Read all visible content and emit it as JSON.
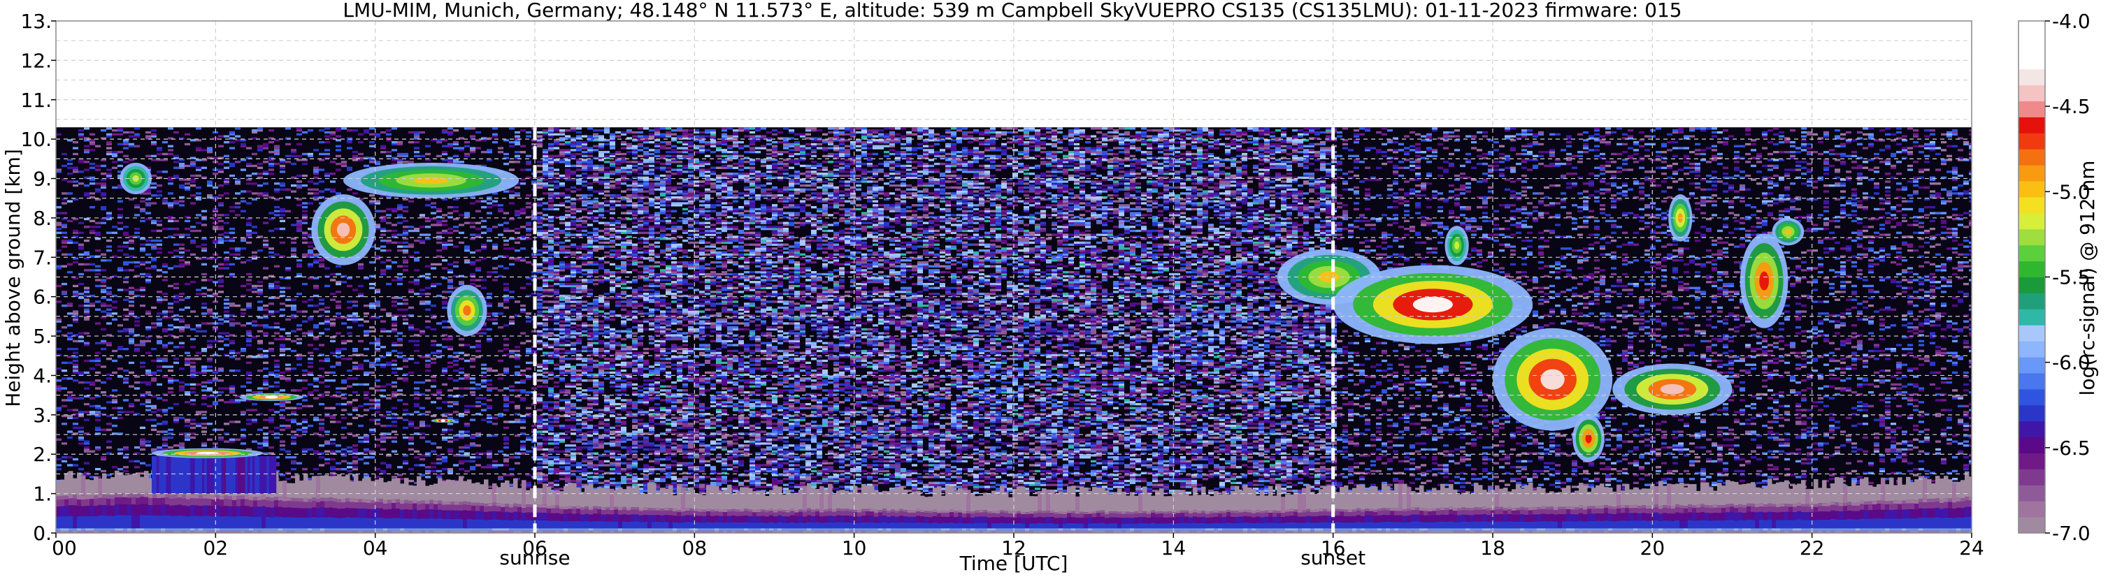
{
  "chart_data": {
    "type": "heatmap",
    "title": "LMU-MIM, Munich, Germany; 48.148° N 11.573° E, altitude: 539 m    Campbell SkyVUEPRO CS135 (CS135LMU): 01-11-2023    firmware: 015",
    "xlabel": "Time [UTC]",
    "ylabel": "Height above ground [km]",
    "xlim": [
      0,
      24
    ],
    "ylim": [
      0,
      13
    ],
    "x_ticks": [
      "00",
      "02",
      "04",
      "06",
      "08",
      "10",
      "12",
      "14",
      "16",
      "18",
      "20",
      "22",
      "24"
    ],
    "y_ticks": [
      "0.",
      "1.",
      "2.",
      "3.",
      "4.",
      "5.",
      "6.",
      "7.",
      "8.",
      "9.",
      "10.",
      "11.",
      "12.",
      "13."
    ],
    "grid": true,
    "data_top_km": 10.3,
    "colorbar": {
      "label": "log(rc-signal) @ 912 nm",
      "range": [
        -7.0,
        -4.0
      ],
      "ticks": [
        "-7.0",
        "-6.5",
        "-6.0",
        "-5.5",
        "-5.0",
        "-4.5",
        "-4.0"
      ],
      "colors": [
        "#a08aa0",
        "#9f749f",
        "#8f5a98",
        "#7f3a8f",
        "#6f1a86",
        "#5a0a88",
        "#3f16a8",
        "#2b36c8",
        "#2f55e0",
        "#4a76f0",
        "#6a98f8",
        "#8db6fc",
        "#a8c8fc",
        "#2db8a8",
        "#1fa07a",
        "#1a9a3a",
        "#2fb82f",
        "#5ccf3c",
        "#9ede3e",
        "#d7ee3a",
        "#f4e020",
        "#fbbf14",
        "#f99a10",
        "#f47010",
        "#f03a10",
        "#e6110c",
        "#f08a8a",
        "#f5c3c3",
        "#f5e6e6",
        "#ffffff",
        "#ffffff",
        "#ffffff"
      ]
    },
    "markers": [
      {
        "time": 6.0,
        "label": "sunrise"
      },
      {
        "time": 16.0,
        "label": "sunset"
      }
    ],
    "boundary_layer": [
      {
        "t": 0,
        "top": 0.95
      },
      {
        "t": 1,
        "top": 1.0
      },
      {
        "t": 2,
        "top": 0.95
      },
      {
        "t": 3,
        "top": 0.9
      },
      {
        "t": 4,
        "top": 0.85
      },
      {
        "t": 5,
        "top": 0.8
      },
      {
        "t": 6,
        "top": 0.7
      },
      {
        "t": 8,
        "top": 0.6
      },
      {
        "t": 10,
        "top": 0.6
      },
      {
        "t": 12,
        "top": 0.55
      },
      {
        "t": 14,
        "top": 0.55
      },
      {
        "t": 16,
        "top": 0.6
      },
      {
        "t": 18,
        "top": 0.65
      },
      {
        "t": 20,
        "top": 0.7
      },
      {
        "t": 22,
        "top": 0.75
      },
      {
        "t": 24,
        "top": 0.9
      }
    ],
    "cloud_layers": [
      {
        "t0": 1.2,
        "t1": 2.6,
        "z0": 1.9,
        "z1": 2.15,
        "max": -4.0
      },
      {
        "t0": 2.3,
        "t1": 3.1,
        "z0": 3.35,
        "z1": 3.55,
        "max": -4.0
      },
      {
        "t0": 4.7,
        "t1": 5.0,
        "z0": 2.8,
        "z1": 2.9,
        "max": -4.2
      },
      {
        "t0": 0.8,
        "t1": 1.2,
        "z0": 8.6,
        "z1": 9.4,
        "max": -5.2
      },
      {
        "t0": 3.2,
        "t1": 4.0,
        "z0": 6.8,
        "z1": 8.6,
        "max": -4.4
      },
      {
        "t0": 3.6,
        "t1": 5.8,
        "z0": 8.5,
        "z1": 9.4,
        "max": -5.0
      },
      {
        "t0": 4.9,
        "t1": 5.4,
        "z0": 5.0,
        "z1": 6.3,
        "max": -4.8
      },
      {
        "t0": 15.3,
        "t1": 16.6,
        "z0": 5.8,
        "z1": 7.2,
        "max": -5.0
      },
      {
        "t0": 16.0,
        "t1": 18.5,
        "z0": 4.8,
        "z1": 6.8,
        "max": -4.2
      },
      {
        "t0": 17.4,
        "t1": 17.7,
        "z0": 6.8,
        "z1": 7.8,
        "max": -5.2
      },
      {
        "t0": 18.0,
        "t1": 19.5,
        "z0": 2.6,
        "z1": 5.2,
        "max": -4.3
      },
      {
        "t0": 19.0,
        "t1": 19.4,
        "z0": 1.8,
        "z1": 3.0,
        "max": -4.6
      },
      {
        "t0": 19.5,
        "t1": 21.0,
        "z0": 3.0,
        "z1": 4.3,
        "max": -4.4
      },
      {
        "t0": 20.2,
        "t1": 20.5,
        "z0": 7.4,
        "z1": 8.6,
        "max": -4.9
      },
      {
        "t0": 21.1,
        "t1": 21.7,
        "z0": 5.2,
        "z1": 7.6,
        "max": -4.6
      },
      {
        "t0": 21.5,
        "t1": 21.9,
        "z0": 7.3,
        "z1": 8.0,
        "max": -5.0
      }
    ]
  }
}
